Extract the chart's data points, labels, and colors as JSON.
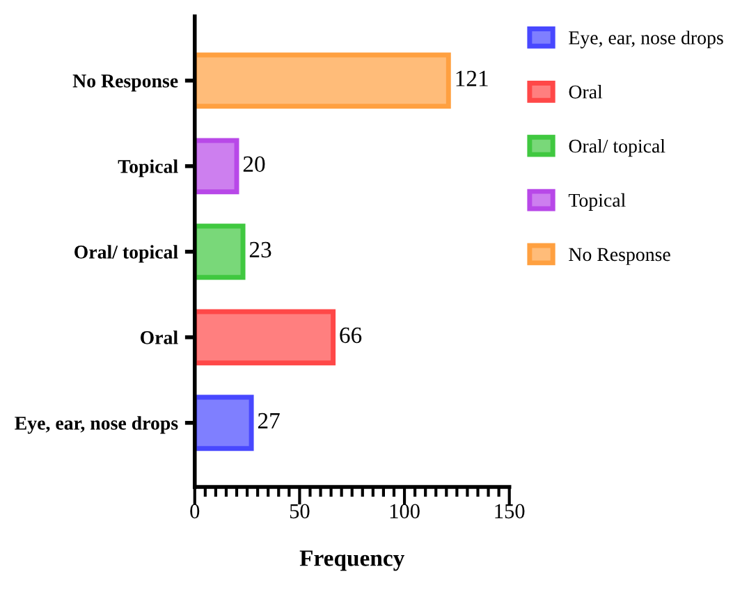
{
  "chart_data": {
    "type": "bar",
    "orientation": "horizontal",
    "xlabel": "Frequency",
    "categories": [
      "No Response",
      "Topical",
      "Oral/ topical",
      "Oral",
      "Eye, ear, nose drops"
    ],
    "series": [
      {
        "name": "Eye, ear, nose drops",
        "color": "#4848ff",
        "values": [
          null,
          null,
          null,
          null,
          27
        ]
      },
      {
        "name": "Oral",
        "color": "#ff4848",
        "values": [
          null,
          null,
          null,
          66,
          null
        ]
      },
      {
        "name": "Oral/ topical",
        "color": "#40c840",
        "values": [
          null,
          null,
          23,
          null,
          null
        ]
      },
      {
        "name": "Topical",
        "color": "#b848e8",
        "values": [
          null,
          20,
          null,
          null,
          null
        ]
      },
      {
        "name": "No Response",
        "color": "#ffa040",
        "values": [
          121,
          null,
          null,
          null,
          null
        ]
      }
    ],
    "data_labels": true,
    "legend": "right",
    "xlim": [
      0,
      150
    ],
    "xticks": [
      0,
      {
        "value": 5,
        "label": null
      },
      {
        "value": 10,
        "label": null
      },
      {
        "value": 15,
        "label": null
      },
      {
        "value": 20,
        "label": null
      },
      {
        "value": 25,
        "label": null
      },
      {
        "value": 30,
        "label": null
      },
      {
        "value": 35,
        "label": null
      },
      {
        "value": 40,
        "label": null
      },
      {
        "value": 45,
        "label": null
      },
      50,
      {
        "value": 55,
        "label": null
      },
      {
        "value": 60,
        "label": null
      },
      {
        "value": 65,
        "label": null
      },
      {
        "value": 70,
        "label": null
      },
      {
        "value": 75,
        "label": null
      },
      {
        "value": 80,
        "label": null
      },
      {
        "value": 85,
        "label": null
      },
      {
        "value": 90,
        "label": null
      },
      {
        "value": 95,
        "label": null
      },
      100,
      {
        "value": 105,
        "label": null
      },
      {
        "value": 110,
        "label": null
      },
      {
        "value": 115,
        "label": null
      },
      {
        "value": 120,
        "label": null
      },
      {
        "value": 125,
        "label": null
      },
      {
        "value": 130,
        "label": null
      },
      {
        "value": 135,
        "label": null
      },
      {
        "value": 140,
        "label": null
      },
      {
        "value": 145,
        "label": null
      },
      150
    ]
  }
}
